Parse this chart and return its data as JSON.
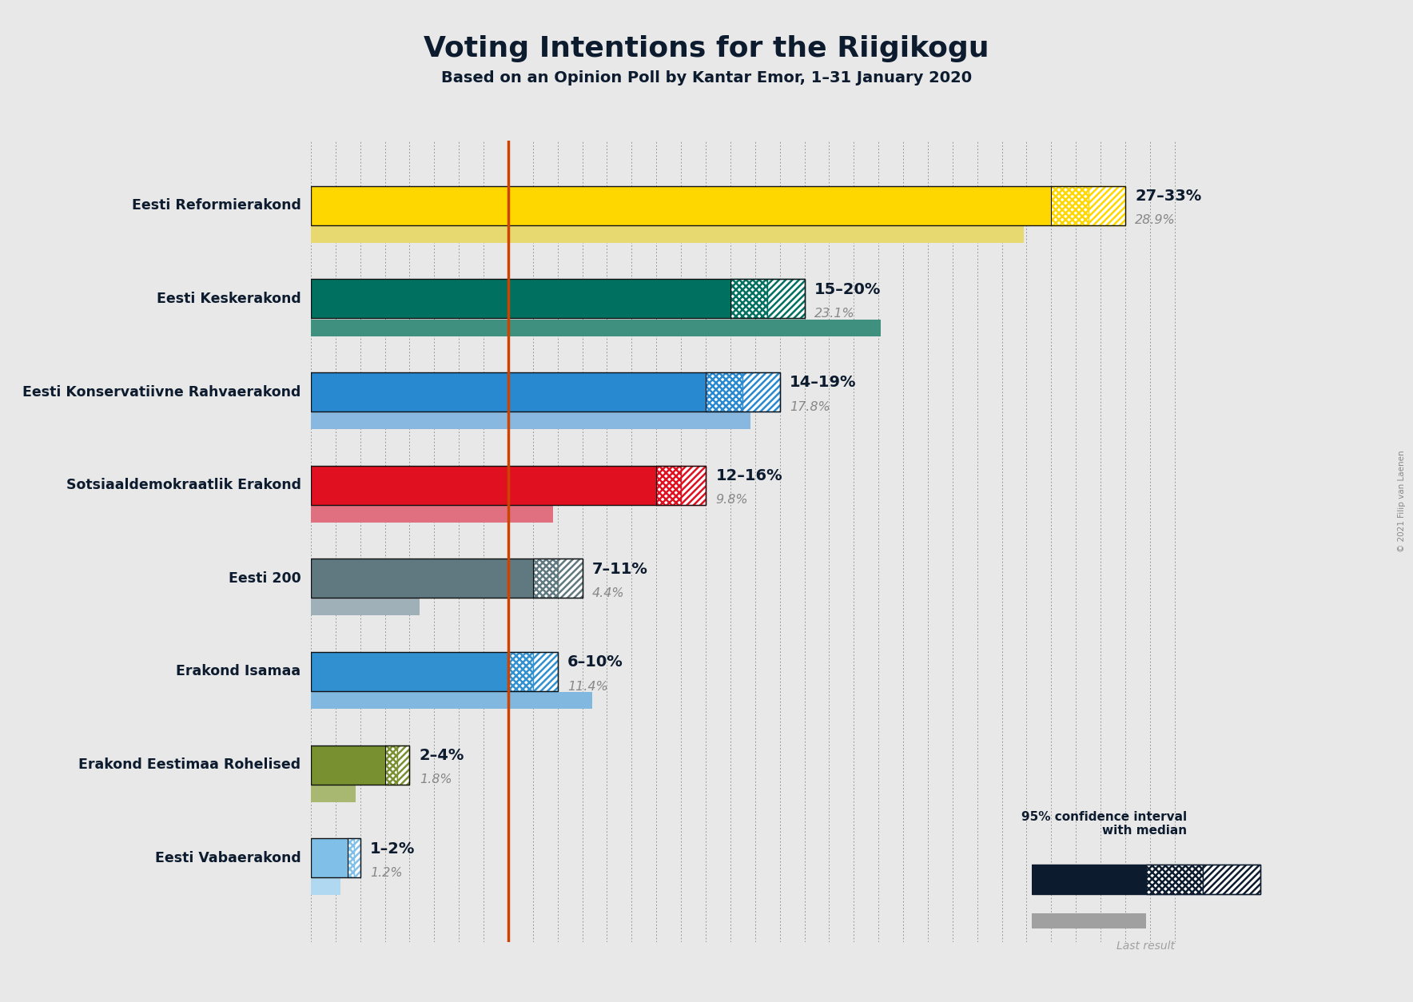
{
  "title": "Voting Intentions for the Riigikogu",
  "subtitle": "Based on an Opinion Poll by Kantar Emor, 1–31 January 2020",
  "copyright": "© 2021 Filip van Laenen",
  "background_color": "#e8e8e8",
  "orange_line": 8.0,
  "xlim_max": 35,
  "parties": [
    {
      "name": "Eesti Reformierakond",
      "ci_low": 27,
      "ci_high": 33,
      "median": 30,
      "last_result": 28.9,
      "color": "#FFD700",
      "color_light": "#e8d870",
      "label": "27–33%",
      "last_label": "28.9%"
    },
    {
      "name": "Eesti Keskerakond",
      "ci_low": 15,
      "ci_high": 20,
      "median": 17,
      "last_result": 23.1,
      "color": "#007060",
      "color_light": "#409080",
      "label": "15–20%",
      "last_label": "23.1%"
    },
    {
      "name": "Eesti Konservatiivne Rahvaerakond",
      "ci_low": 14,
      "ci_high": 19,
      "median": 16,
      "last_result": 17.8,
      "color": "#2888D0",
      "color_light": "#88b8e0",
      "label": "14–19%",
      "last_label": "17.8%"
    },
    {
      "name": "Sotsiaaldemokraatlik Erakond",
      "ci_low": 12,
      "ci_high": 16,
      "median": 14,
      "last_result": 9.8,
      "color": "#E01020",
      "color_light": "#e07080",
      "label": "12–16%",
      "last_label": "9.8%"
    },
    {
      "name": "Eesti 200",
      "ci_low": 7,
      "ci_high": 11,
      "median": 9,
      "last_result": 4.4,
      "color": "#607880",
      "color_light": "#a0b0b8",
      "label": "7–11%",
      "last_label": "4.4%"
    },
    {
      "name": "Erakond Isamaa",
      "ci_low": 6,
      "ci_high": 10,
      "median": 8,
      "last_result": 11.4,
      "color": "#3090D0",
      "color_light": "#80b8e0",
      "label": "6–10%",
      "last_label": "11.4%"
    },
    {
      "name": "Erakond Eestimaa Rohelised",
      "ci_low": 2,
      "ci_high": 4,
      "median": 3,
      "last_result": 1.8,
      "color": "#789030",
      "color_light": "#a8b870",
      "label": "2–4%",
      "last_label": "1.8%"
    },
    {
      "name": "Eesti Vabaerakond",
      "ci_low": 1,
      "ci_high": 2,
      "median": 1.5,
      "last_result": 1.2,
      "color": "#80C0E8",
      "color_light": "#b0d8f0",
      "label": "1–2%",
      "last_label": "1.2%"
    }
  ]
}
